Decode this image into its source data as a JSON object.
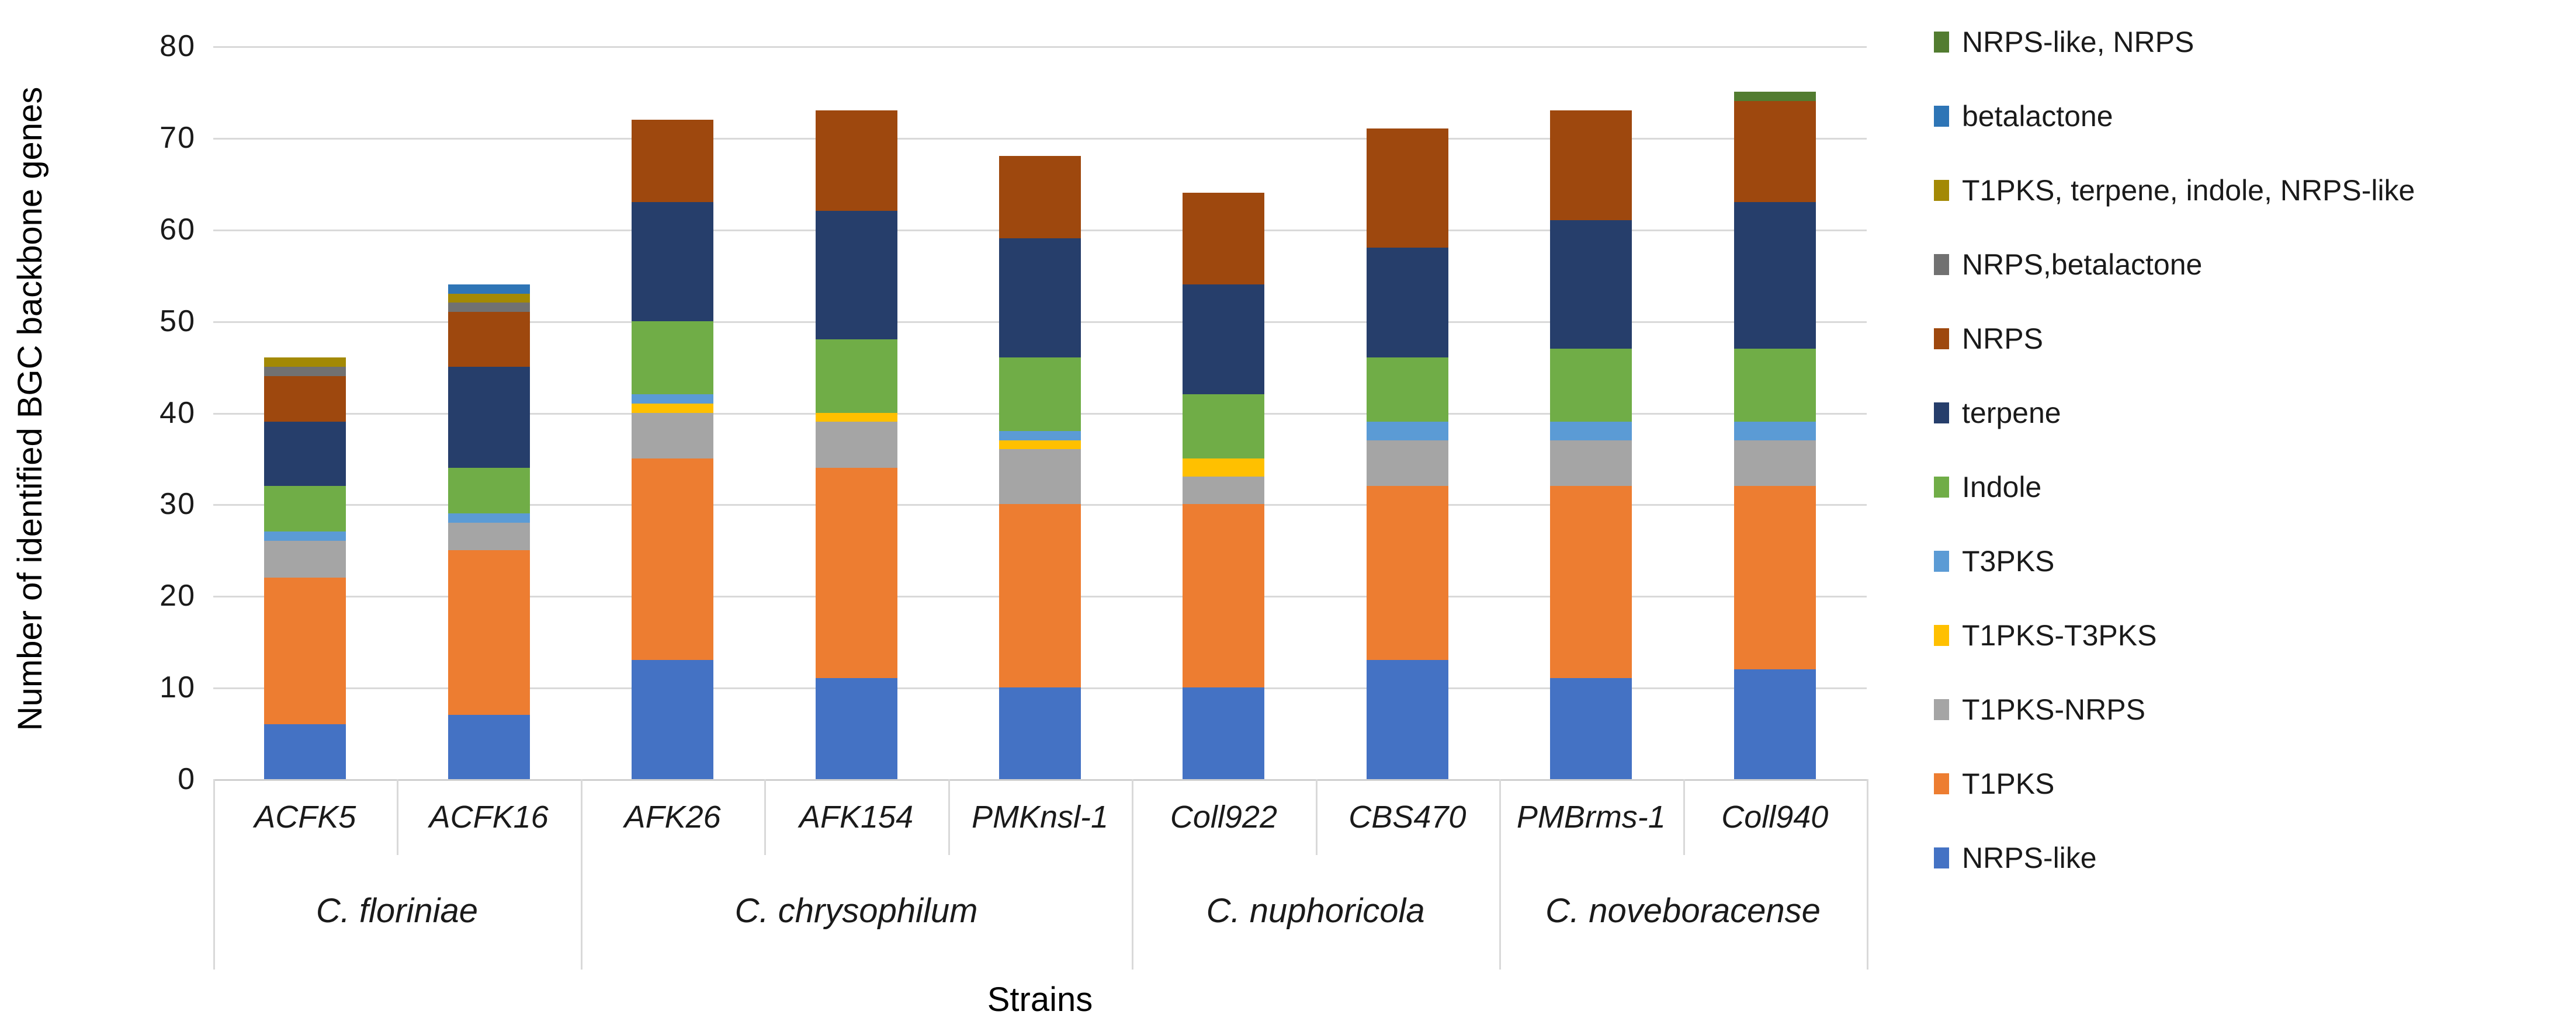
{
  "chart_data": {
    "type": "bar",
    "stacked": true,
    "title": "",
    "xlabel": "Strains",
    "ylabel": "Number of identified BGC backbone genes",
    "ylim": [
      0,
      80
    ],
    "ytick_step": 10,
    "yticks": [
      "0",
      "10",
      "20",
      "30",
      "40",
      "50",
      "60",
      "70",
      "80"
    ],
    "grid": true,
    "legend_position": "right",
    "categories": [
      "ACFK5",
      "ACFK16",
      "AFK26",
      "AFK154",
      "PMKnsl-1",
      "Coll922",
      "CBS470",
      "PMBrms-1",
      "Coll940"
    ],
    "groups": [
      {
        "label": "C. floriniae",
        "strains": [
          "ACFK5",
          "ACFK16"
        ]
      },
      {
        "label": "C. chrysophilum",
        "strains": [
          "AFK26",
          "AFK154",
          "PMKnsl-1"
        ]
      },
      {
        "label": "C. nuphoricola",
        "strains": [
          "Coll922",
          "CBS470"
        ]
      },
      {
        "label": "C. noveboracense",
        "strains": [
          "PMBrms-1",
          "Coll940"
        ]
      }
    ],
    "series": [
      {
        "name": "NRPS-like",
        "color": "#4472C4",
        "values": [
          6,
          7,
          13,
          11,
          10,
          10,
          13,
          11,
          12
        ]
      },
      {
        "name": "T1PKS",
        "color": "#ED7D31",
        "values": [
          16,
          18,
          22,
          23,
          20,
          20,
          19,
          21,
          20
        ]
      },
      {
        "name": "T1PKS-NRPS",
        "color": "#A5A5A5",
        "values": [
          4,
          3,
          5,
          5,
          6,
          3,
          5,
          5,
          5
        ]
      },
      {
        "name": "T1PKS-T3PKS",
        "color": "#FFC000",
        "values": [
          0,
          0,
          1,
          1,
          1,
          2,
          0,
          0,
          0
        ]
      },
      {
        "name": "T3PKS",
        "color": "#5B9BD5",
        "values": [
          1,
          1,
          1,
          0,
          1,
          0,
          2,
          2,
          2
        ]
      },
      {
        "name": "Indole",
        "color": "#70AD47",
        "values": [
          5,
          5,
          8,
          8,
          8,
          7,
          7,
          8,
          8
        ]
      },
      {
        "name": "terpene",
        "color": "#263E6B",
        "values": [
          7,
          11,
          13,
          14,
          13,
          12,
          12,
          14,
          16
        ]
      },
      {
        "name": "NRPS",
        "color": "#9E480E",
        "values": [
          5,
          6,
          9,
          11,
          9,
          10,
          13,
          12,
          11
        ]
      },
      {
        "name": "NRPS,betalactone",
        "color": "#717171",
        "values": [
          1,
          1,
          0,
          0,
          0,
          0,
          0,
          0,
          0
        ]
      },
      {
        "name": "T1PKS, terpene, indole, NRPS-like",
        "color": "#A38905",
        "values": [
          1,
          1,
          0,
          0,
          0,
          0,
          0,
          0,
          0
        ]
      },
      {
        "name": "betalactone",
        "color": "#2E75B6",
        "values": [
          0,
          1,
          0,
          0,
          0,
          0,
          0,
          0,
          0
        ]
      },
      {
        "name": "NRPS-like, NRPS",
        "color": "#527C30",
        "values": [
          0,
          0,
          0,
          0,
          0,
          0,
          0,
          0,
          1
        ]
      }
    ],
    "bar_totals": [
      46,
      54,
      72,
      73,
      68,
      64,
      71,
      73,
      75
    ],
    "legend_order_top_to_bottom": [
      "NRPS-like, NRPS",
      "betalactone",
      "T1PKS, terpene, indole, NRPS-like",
      "NRPS,betalactone",
      "NRPS",
      "terpene",
      "Indole",
      "T3PKS",
      "T1PKS-T3PKS",
      "T1PKS-NRPS",
      "T1PKS",
      "NRPS-like"
    ]
  }
}
